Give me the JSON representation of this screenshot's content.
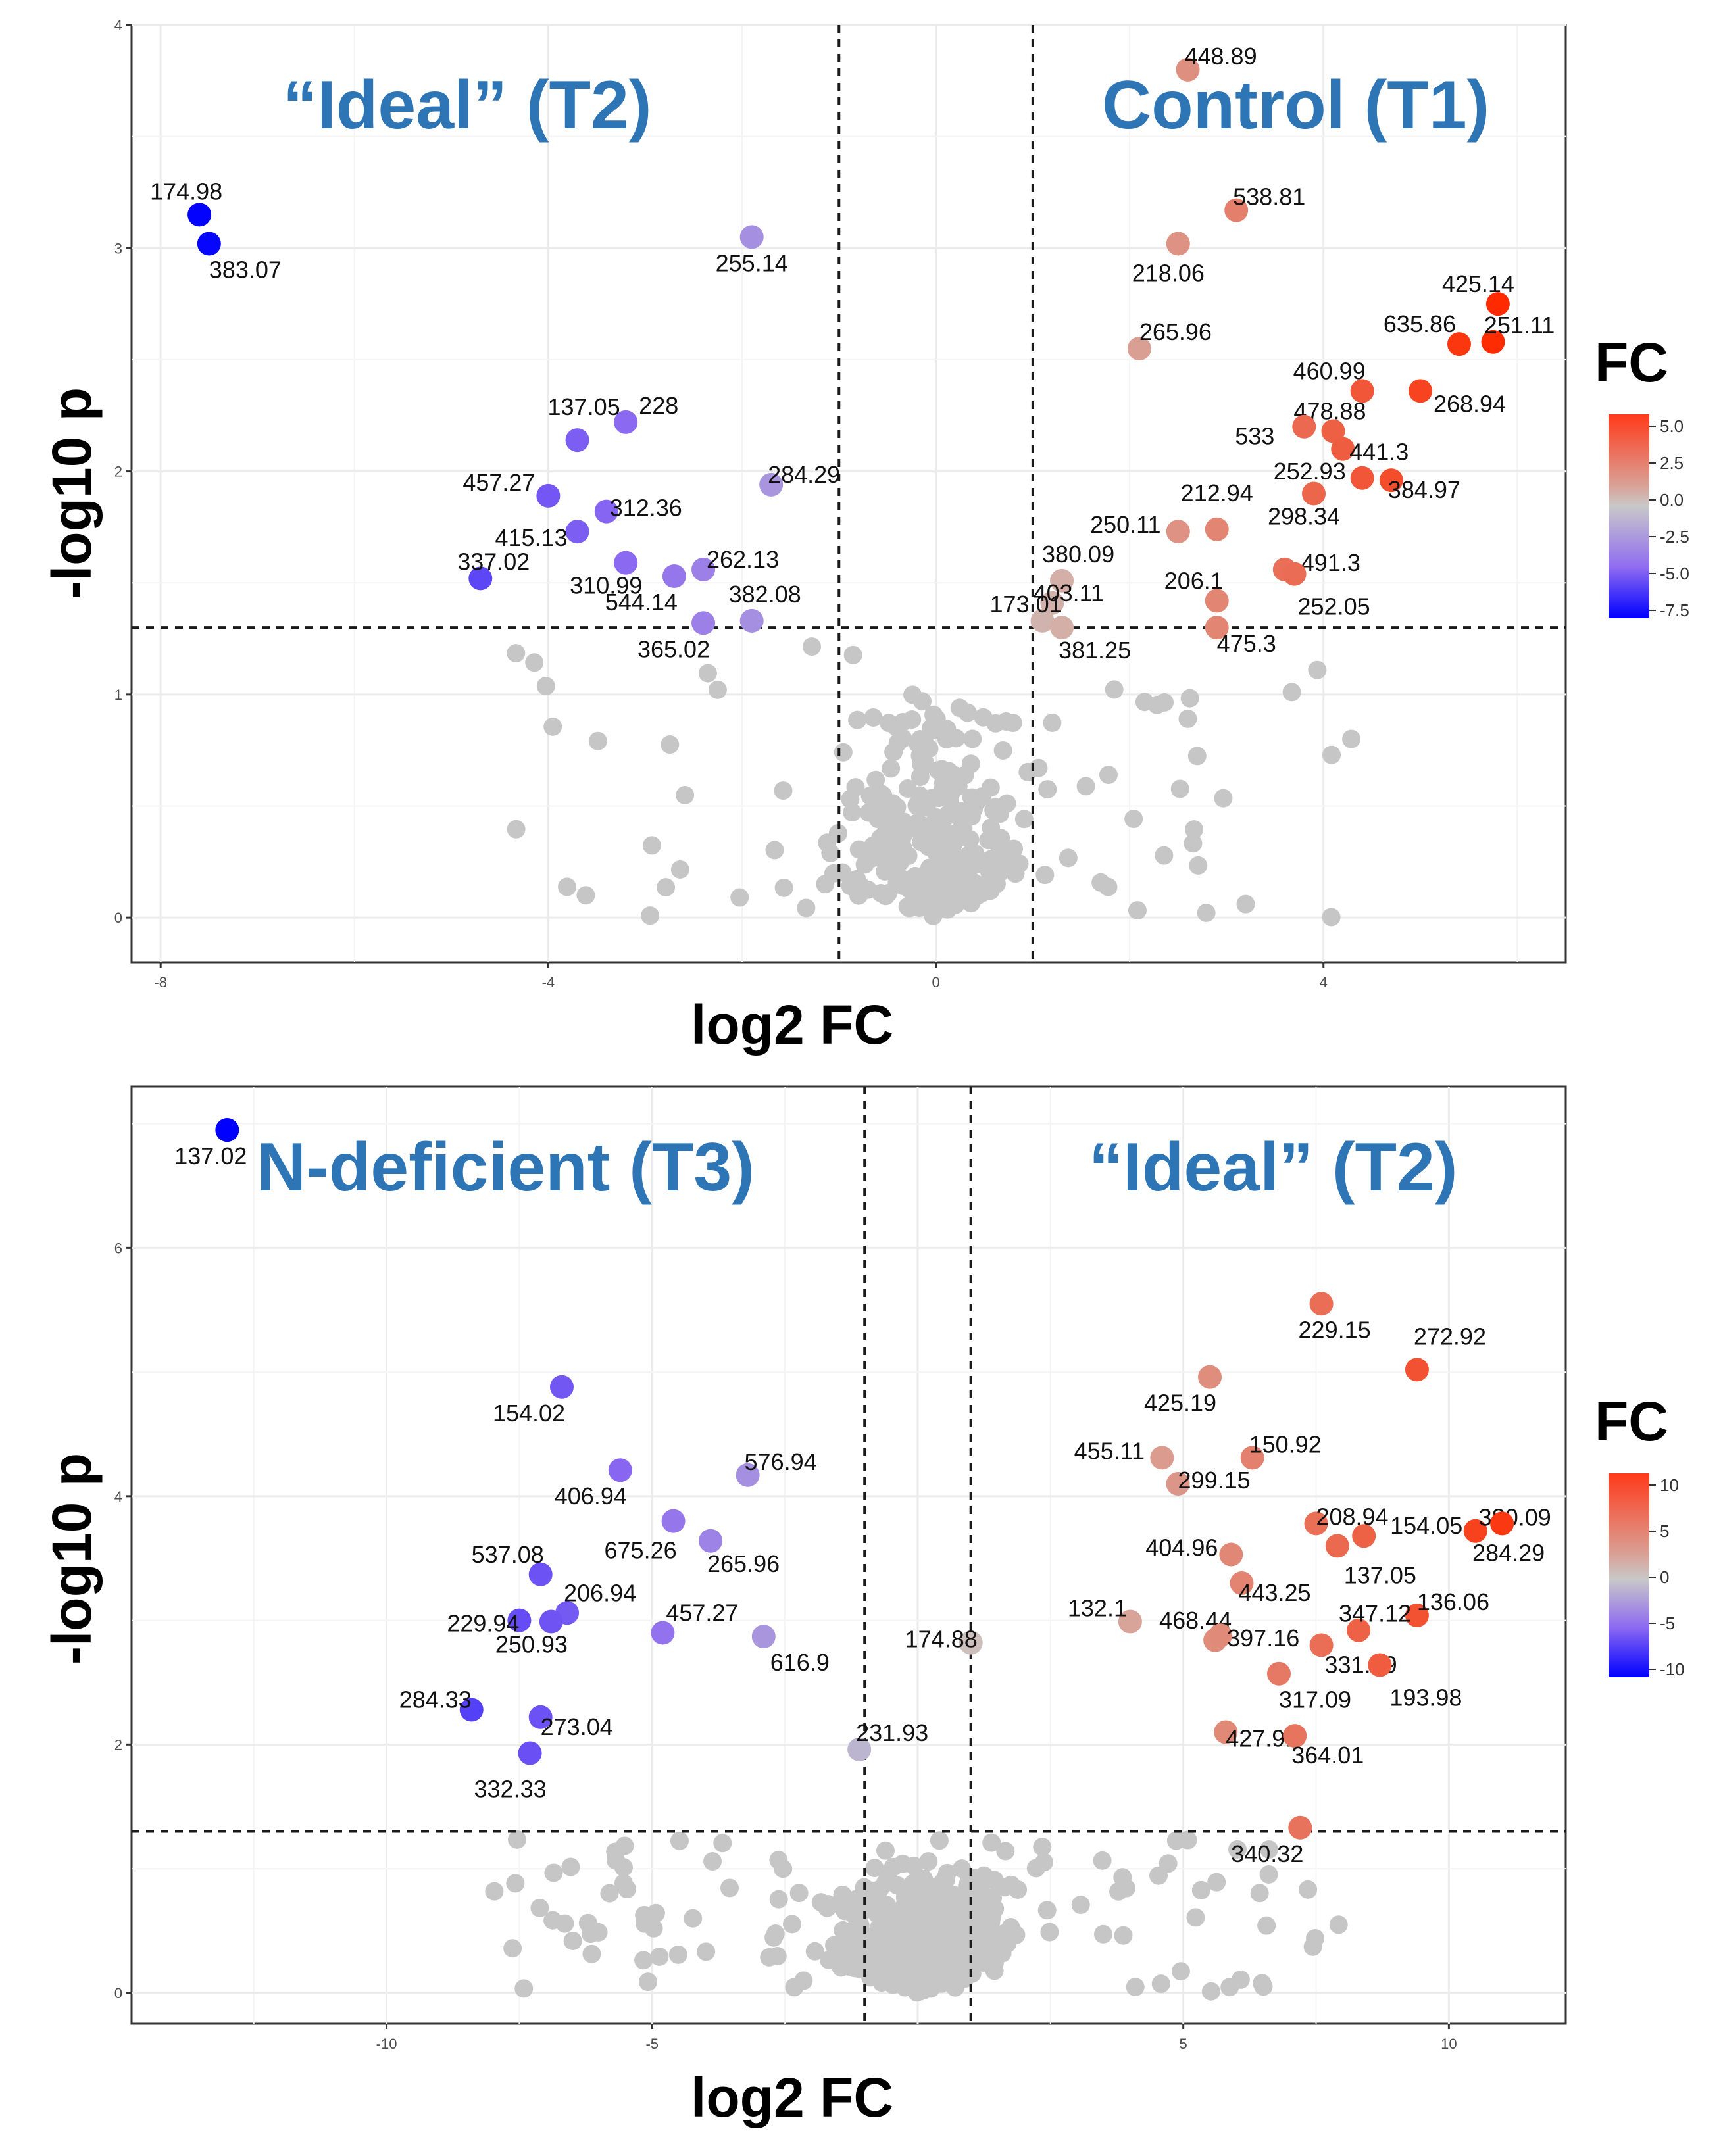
{
  "colors": {
    "blue": "#0000ff",
    "red": "#ff2a00",
    "grey": "#c8c8c8",
    "group_text": "#2e75b6"
  },
  "chart_data": [
    {
      "type": "scatter",
      "title": "",
      "xlabel": "log2 FC",
      "ylabel": "-log10 p",
      "xlim": [
        -8.3,
        6.5
      ],
      "ylim": [
        -0.2,
        4.0
      ],
      "xticks": [
        -8,
        -4,
        0,
        4
      ],
      "yticks": [
        0,
        1,
        2,
        3,
        4
      ],
      "vlines": [
        -1,
        1
      ],
      "hline": 1.3,
      "groups": {
        "left": "“Ideal” (T2)",
        "right": "Control (T1)"
      },
      "legend": {
        "title": "FC",
        "ticks": [
          "5.0",
          "2.5",
          "0.0",
          "-2.5",
          "-5.0",
          "-7.5"
        ],
        "range": [
          -7.7,
          5.8
        ]
      },
      "labeled_points": [
        {
          "x": 2.6,
          "y": 3.8,
          "label": "448.89"
        },
        {
          "x": -7.6,
          "y": 3.15,
          "label": "174.98"
        },
        {
          "x": -7.5,
          "y": 3.02,
          "label": "383.07"
        },
        {
          "x": -1.9,
          "y": 3.05,
          "label": "255.14"
        },
        {
          "x": 3.1,
          "y": 3.17,
          "label": "538.81"
        },
        {
          "x": 2.5,
          "y": 3.02,
          "label": "218.06"
        },
        {
          "x": 5.8,
          "y": 2.75,
          "label": "425.14"
        },
        {
          "x": 5.4,
          "y": 2.57,
          "label": "635.86"
        },
        {
          "x": 5.75,
          "y": 2.58,
          "label": "251.11"
        },
        {
          "x": 2.1,
          "y": 2.55,
          "label": "265.96"
        },
        {
          "x": 4.4,
          "y": 2.36,
          "label": "460.99"
        },
        {
          "x": 5.0,
          "y": 2.36,
          "label": "268.94"
        },
        {
          "x": -3.2,
          "y": 2.22,
          "label": "228"
        },
        {
          "x": 4.1,
          "y": 2.18,
          "label": "478.88"
        },
        {
          "x": 3.8,
          "y": 2.2,
          "label": "533"
        },
        {
          "x": 4.2,
          "y": 2.1,
          "label": "441.3"
        },
        {
          "x": -3.7,
          "y": 2.14,
          "label": "137.05"
        },
        {
          "x": -4.0,
          "y": 1.89,
          "label": "457.27"
        },
        {
          "x": -1.7,
          "y": 1.94,
          "label": "284.29"
        },
        {
          "x": -3.4,
          "y": 1.82,
          "label": "312.36"
        },
        {
          "x": 4.4,
          "y": 1.97,
          "label": "252.93"
        },
        {
          "x": 4.7,
          "y": 1.96,
          "label": "384.97"
        },
        {
          "x": 2.9,
          "y": 1.74,
          "label": "212.94"
        },
        {
          "x": 3.9,
          "y": 1.9,
          "label": "298.34"
        },
        {
          "x": -3.7,
          "y": 1.73,
          "label": "415.13"
        },
        {
          "x": 2.5,
          "y": 1.73,
          "label": "250.11"
        },
        {
          "x": -3.2,
          "y": 1.59,
          "label": "310.99"
        },
        {
          "x": -4.7,
          "y": 1.52,
          "label": "337.02"
        },
        {
          "x": -2.4,
          "y": 1.56,
          "label": "262.13"
        },
        {
          "x": 3.6,
          "y": 1.56,
          "label": "491.3"
        },
        {
          "x": 1.3,
          "y": 1.51,
          "label": "380.09"
        },
        {
          "x": -2.7,
          "y": 1.53,
          "label": "544.14"
        },
        {
          "x": 2.9,
          "y": 1.42,
          "label": "206.1"
        },
        {
          "x": 3.7,
          "y": 1.54,
          "label": "252.05"
        },
        {
          "x": 1.2,
          "y": 1.41,
          "label": "403.11"
        },
        {
          "x": -1.9,
          "y": 1.33,
          "label": "382.08"
        },
        {
          "x": 1.1,
          "y": 1.33,
          "label": "173.01"
        },
        {
          "x": -2.4,
          "y": 1.32,
          "label": "365.02"
        },
        {
          "x": 1.3,
          "y": 1.3,
          "label": "381.25"
        },
        {
          "x": 2.9,
          "y": 1.3,
          "label": "475.3"
        }
      ]
    },
    {
      "type": "scatter",
      "title": "",
      "xlabel": "log2 FC",
      "ylabel": "-log10 p",
      "xlim": [
        -14.8,
        12.2
      ],
      "ylim": [
        -0.25,
        7.3
      ],
      "xticks": [
        -10,
        -5,
        5,
        10
      ],
      "yticks": [
        0,
        2,
        4,
        6
      ],
      "vlines": [
        -1,
        1
      ],
      "hline": 1.3,
      "groups": {
        "left": "N-deficient (T3)",
        "right": "“Ideal” (T2)"
      },
      "legend": {
        "title": "FC",
        "ticks": [
          "10",
          "5",
          "0",
          "-5",
          "-10"
        ],
        "range": [
          -13,
          12
        ]
      },
      "labeled_points": [
        {
          "x": -13,
          "y": 6.95,
          "label": "137.02"
        },
        {
          "x": 7.6,
          "y": 5.55,
          "label": "229.15"
        },
        {
          "x": 9.4,
          "y": 5.02,
          "label": "272.92"
        },
        {
          "x": -6.7,
          "y": 4.88,
          "label": "154.02"
        },
        {
          "x": 5.5,
          "y": 4.96,
          "label": "425.19"
        },
        {
          "x": -5.6,
          "y": 4.21,
          "label": "406.94"
        },
        {
          "x": -3.2,
          "y": 4.17,
          "label": "576.94"
        },
        {
          "x": 4.6,
          "y": 4.31,
          "label": "455.11"
        },
        {
          "x": 6.3,
          "y": 4.31,
          "label": "150.92"
        },
        {
          "x": -4.6,
          "y": 3.8,
          "label": "675.26"
        },
        {
          "x": 4.9,
          "y": 4.1,
          "label": "299.15"
        },
        {
          "x": 7.5,
          "y": 3.78,
          "label": "208.94"
        },
        {
          "x": 10.5,
          "y": 3.72,
          "label": "380.09"
        },
        {
          "x": 11,
          "y": 3.78,
          "label": "284.29"
        },
        {
          "x": 8.4,
          "y": 3.68,
          "label": "154.05"
        },
        {
          "x": -3.9,
          "y": 3.64,
          "label": "265.96"
        },
        {
          "x": 5.9,
          "y": 3.53,
          "label": "404.96"
        },
        {
          "x": 7.9,
          "y": 3.6,
          "label": "137.05"
        },
        {
          "x": -7.1,
          "y": 3.37,
          "label": "537.08"
        },
        {
          "x": 6.1,
          "y": 3.3,
          "label": "443.25"
        },
        {
          "x": -6.6,
          "y": 3.06,
          "label": "206.94"
        },
        {
          "x": -7.5,
          "y": 3.0,
          "label": "229.94"
        },
        {
          "x": 9.4,
          "y": 3.04,
          "label": "136.06"
        },
        {
          "x": 4.0,
          "y": 2.99,
          "label": "132.1"
        },
        {
          "x": -6.9,
          "y": 2.99,
          "label": "250.93"
        },
        {
          "x": -4.8,
          "y": 2.9,
          "label": "457.27"
        },
        {
          "x": 8.3,
          "y": 2.92,
          "label": "347.12"
        },
        {
          "x": 5.6,
          "y": 2.84,
          "label": "468.44"
        },
        {
          "x": 7.6,
          "y": 2.8,
          "label": "331.89"
        },
        {
          "x": 5.7,
          "y": 2.88,
          "label": "397.16"
        },
        {
          "x": 1.0,
          "y": 2.82,
          "label": "174.88"
        },
        {
          "x": -2.9,
          "y": 2.87,
          "label": "616.9"
        },
        {
          "x": 6.8,
          "y": 2.57,
          "label": "317.09"
        },
        {
          "x": 8.7,
          "y": 2.64,
          "label": "193.98"
        },
        {
          "x": -8.4,
          "y": 2.28,
          "label": "284.33"
        },
        {
          "x": 5.8,
          "y": 2.1,
          "label": "427.91"
        },
        {
          "x": -7.1,
          "y": 2.22,
          "label": "273.04"
        },
        {
          "x": -1.1,
          "y": 1.96,
          "label": "231.93"
        },
        {
          "x": -7.3,
          "y": 1.93,
          "label": "332.33"
        },
        {
          "x": 7.1,
          "y": 2.07,
          "label": "364.01"
        },
        {
          "x": 7.2,
          "y": 1.33,
          "label": "340.32"
        }
      ]
    }
  ]
}
